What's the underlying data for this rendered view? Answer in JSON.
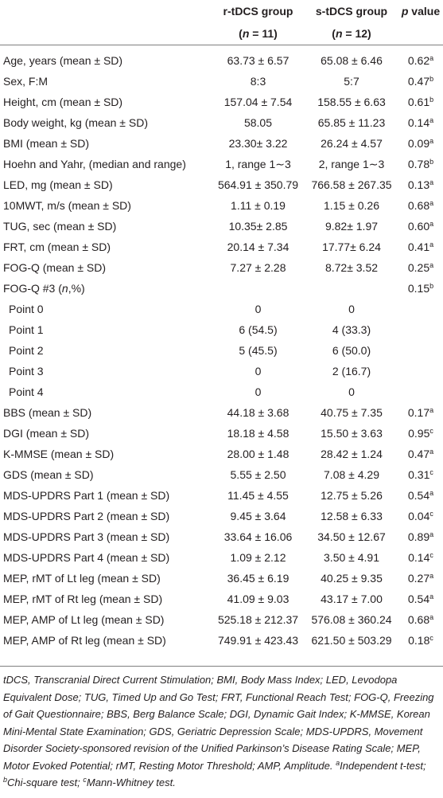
{
  "header": {
    "col_variable": "",
    "col_r_line1": "r-tDCS group",
    "col_r_n_label": "n",
    "col_r_n_value": " = 11)",
    "col_s_line1": "s-tDCS group",
    "col_s_n_label": "n",
    "col_s_n_value": " = 12)",
    "col_p_italic": "p",
    "col_p_rest": " value"
  },
  "rows": [
    {
      "label": "Age, years (mean ± SD)",
      "r": "63.73 ± 6.57",
      "s": "65.08 ± 6.46",
      "p": "0.62",
      "sup": "a"
    },
    {
      "label": "Sex, F:M",
      "r": "8:3",
      "s": "5:7",
      "p": "0.47",
      "sup": "b"
    },
    {
      "label": "Height, cm (mean ± SD)",
      "r": "157.04 ± 7.54",
      "s": "158.55 ± 6.63",
      "p": "0.61",
      "sup": "b"
    },
    {
      "label": "Body weight, kg (mean ± SD)",
      "r": "58.05",
      "s": "65.85 ± 11.23",
      "p": "0.14",
      "sup": "a"
    },
    {
      "label": "BMI (mean ± SD)",
      "r": "23.30± 3.22",
      "s": "26.24 ± 4.57",
      "p": "0.09",
      "sup": "a"
    },
    {
      "label": "Hoehn and Yahr, (median and range)",
      "r": "1, range 1∼3",
      "s": "2, range 1∼3",
      "p": "0.78",
      "sup": "b"
    },
    {
      "label": "LED, mg (mean ± SD)",
      "r": "564.91 ± 350.79",
      "s": "766.58 ± 267.35",
      "p": "0.13",
      "sup": "a"
    },
    {
      "label": "10MWT, m/s (mean ± SD)",
      "r": "1.11 ± 0.19",
      "s": "1.15 ± 0.26",
      "p": "0.68",
      "sup": "a"
    },
    {
      "label": "TUG, sec (mean ± SD)",
      "r": "10.35± 2.85",
      "s": "9.82± 1.97",
      "p": "0.60",
      "sup": "a"
    },
    {
      "label": "FRT, cm (mean ± SD)",
      "r": "20.14 ± 7.34",
      "s": "17.77± 6.24",
      "p": "0.41",
      "sup": "a"
    },
    {
      "label": "FOG-Q (mean ± SD)",
      "r": "7.27 ± 2.28",
      "s": "8.72± 3.52",
      "p": "0.25",
      "sup": "a"
    },
    {
      "label": "FOG-Q #3 (",
      "label_italic": "n",
      "label_tail": ",%)",
      "r": "",
      "s": "",
      "p": "0.15",
      "sup": "b"
    },
    {
      "label": "Point 0",
      "indent": true,
      "r": "0",
      "s": "0",
      "p": "",
      "sup": ""
    },
    {
      "label": "Point 1",
      "indent": true,
      "r": "6 (54.5)",
      "s": "4 (33.3)",
      "p": "",
      "sup": ""
    },
    {
      "label": "Point 2",
      "indent": true,
      "r": "5 (45.5)",
      "s": "6 (50.0)",
      "p": "",
      "sup": ""
    },
    {
      "label": "Point 3",
      "indent": true,
      "r": "0",
      "s": "2 (16.7)",
      "p": "",
      "sup": ""
    },
    {
      "label": "Point 4",
      "indent": true,
      "r": "0",
      "s": "0",
      "p": "",
      "sup": ""
    },
    {
      "label": "BBS (mean ± SD)",
      "r": "44.18 ± 3.68",
      "s": "40.75 ± 7.35",
      "p": "0.17",
      "sup": "a"
    },
    {
      "label": "DGI (mean ± SD)",
      "r": "18.18 ± 4.58",
      "s": "15.50 ± 3.63",
      "p": "0.95",
      "sup": "c"
    },
    {
      "label": "K-MMSE (mean ± SD)",
      "r": "28.00 ± 1.48",
      "s": "28.42 ± 1.24",
      "p": "0.47",
      "sup": "a"
    },
    {
      "label": "GDS (mean ± SD)",
      "r": "5.55 ± 2.50",
      "s": "7.08 ± 4.29",
      "p": "0.31",
      "sup": "c"
    },
    {
      "label": "MDS-UPDRS Part 1 (mean ± SD)",
      "r": "11.45 ± 4.55",
      "s": "12.75 ± 5.26",
      "p": "0.54",
      "sup": "a"
    },
    {
      "label": "MDS-UPDRS Part 2 (mean ± SD)",
      "r": "9.45 ± 3.64",
      "s": "12.58 ± 6.33",
      "p": "0.04",
      "sup": "c"
    },
    {
      "label": "MDS-UPDRS Part 3 (mean ± SD)",
      "r": "33.64 ± 16.06",
      "s": "34.50 ± 12.67",
      "p": "0.89",
      "sup": "a"
    },
    {
      "label": "MDS-UPDRS Part 4 (mean ± SD)",
      "r": "1.09 ± 2.12",
      "s": "3.50 ± 4.91",
      "p": "0.14",
      "sup": "c"
    },
    {
      "label": "MEP, rMT of Lt leg (mean ± SD)",
      "r": "36.45 ± 6.19",
      "s": "40.25 ± 9.35",
      "p": "0.27",
      "sup": "a"
    },
    {
      "label": "MEP, rMT of Rt leg (mean ± SD)",
      "r": "41.09 ± 9.03",
      "s": "43.17 ± 7.00",
      "p": "0.54",
      "sup": "a"
    },
    {
      "label": "MEP, AMP of Lt leg (mean ± SD)",
      "r": "525.18 ± 212.37",
      "s": "576.08 ± 360.24",
      "p": "0.68",
      "sup": "a"
    },
    {
      "label": "MEP, AMP of Rt leg (mean ± SD)",
      "r": "749.91 ± 423.43",
      "s": "621.50 ± 503.29",
      "p": "0.18",
      "sup": "c"
    }
  ],
  "footnote": {
    "abbreviations": "tDCS, Transcranial Direct Current Stimulation; BMI, Body Mass Index; LED, Levodopa Equivalent Dose; TUG, Timed Up and Go Test; FRT, Functional Reach Test; FOG-Q, Freezing of Gait Questionnaire; BBS, Berg Balance Scale; DGI, Dynamic Gait Index; K-MMSE, Korean Mini-Mental State Examination; GDS, Geriatric Depression Scale; MDS-UPDRS, Movement Disorder Society-sponsored revision of the Unified Parkinson’s Disease Rating Scale; MEP, Motor Evoked Potential; rMT, Resting Motor Threshold; AMP, Amplitude.",
    "sup_a": "a",
    "note_a": "Independent t-test; ",
    "sup_b": "b",
    "note_b": "Chi-square test; ",
    "sup_c": "c",
    "note_c": "Mann-Whitney test."
  }
}
